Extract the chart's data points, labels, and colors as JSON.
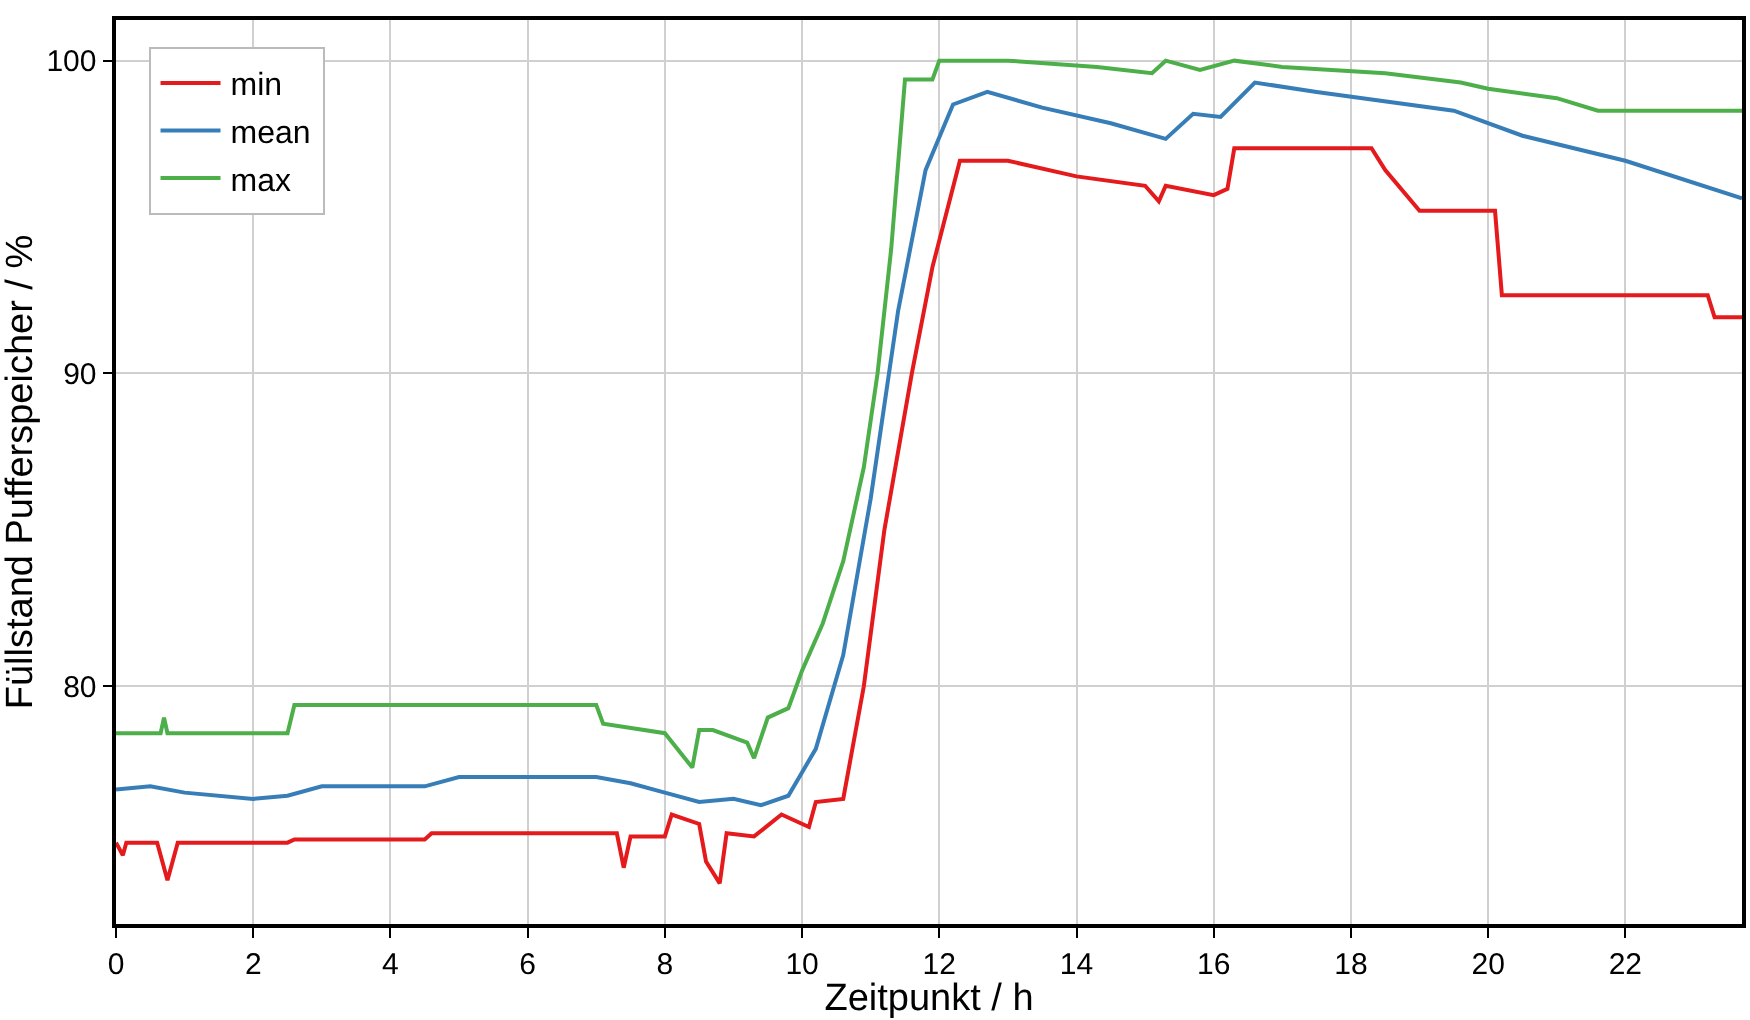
{
  "chart_data": {
    "type": "line",
    "xlabel": "Zeitpunkt / h",
    "ylabel": "Füllstand Pufferspeicher / %",
    "xlim": [
      0,
      23.7
    ],
    "ylim": [
      72.4,
      101.3
    ],
    "xticks": [
      0,
      2,
      4,
      6,
      8,
      10,
      12,
      14,
      16,
      18,
      20,
      22
    ],
    "yticks": [
      80,
      90,
      100
    ],
    "grid": true,
    "legend": "top left",
    "line_style": "solid",
    "marker": "none",
    "series": [
      {
        "name": "min",
        "color": "#e41a1c",
        "x": [
          0,
          0.1,
          0.15,
          0.2,
          0.6,
          0.75,
          0.9,
          2.5,
          2.6,
          4.5,
          4.6,
          7.3,
          7.4,
          7.5,
          8,
          8.1,
          8.5,
          8.6,
          8.8,
          8.9,
          9.3,
          9.7,
          10.1,
          10.2,
          10.6,
          10.9,
          11.2,
          11.6,
          11.9,
          12.3,
          13,
          14,
          15,
          15.2,
          15.3,
          16,
          16.2,
          16.3,
          18.3,
          18.5,
          19,
          20.1,
          20.2,
          23.2,
          23.3,
          23.7
        ],
        "values": [
          75,
          74.6,
          75,
          75,
          75,
          73.8,
          75,
          75,
          75.1,
          75.1,
          75.3,
          75.3,
          74.2,
          75.2,
          75.2,
          75.9,
          75.6,
          74.4,
          73.7,
          75.3,
          75.2,
          75.9,
          75.5,
          76.3,
          76.4,
          80,
          85,
          90,
          93.4,
          96.8,
          96.8,
          96.3,
          96,
          95.5,
          96,
          95.7,
          95.9,
          97.2,
          97.2,
          96.5,
          95.2,
          95.2,
          92.5,
          92.5,
          91.8,
          91.8
        ]
      },
      {
        "name": "mean",
        "color": "#377eb8",
        "x": [
          0,
          0.5,
          1,
          2,
          2.5,
          3,
          4.5,
          5,
          7,
          7.5,
          8,
          8.5,
          9,
          9.4,
          9.8,
          10.2,
          10.6,
          11,
          11.4,
          11.8,
          12.2,
          12.7,
          13.5,
          14.5,
          15.3,
          15.7,
          16.1,
          16.6,
          17.5,
          19.5,
          20.5,
          22,
          23.7
        ],
        "values": [
          76.7,
          76.8,
          76.6,
          76.4,
          76.5,
          76.8,
          76.8,
          77.1,
          77.1,
          76.9,
          76.6,
          76.3,
          76.4,
          76.2,
          76.5,
          78,
          81,
          86,
          92,
          96.5,
          98.6,
          99,
          98.5,
          98,
          97.5,
          98.3,
          98.2,
          99.3,
          99,
          98.4,
          97.6,
          96.8,
          95.6
        ]
      },
      {
        "name": "max",
        "color": "#4daf4a",
        "x": [
          0,
          0.65,
          0.7,
          0.75,
          2.5,
          2.6,
          7,
          7.1,
          8,
          8.4,
          8.5,
          8.7,
          9.2,
          9.3,
          9.5,
          9.8,
          10,
          10.3,
          10.6,
          10.9,
          11.1,
          11.3,
          11.5,
          11.9,
          12,
          13,
          14.3,
          15.1,
          15.3,
          15.8,
          16.3,
          17,
          18.5,
          19.6,
          20,
          21,
          21.6,
          23.7
        ],
        "values": [
          78.5,
          78.5,
          79,
          78.5,
          78.5,
          79.4,
          79.4,
          78.8,
          78.5,
          77.4,
          78.6,
          78.6,
          78.2,
          77.7,
          79,
          79.3,
          80.5,
          82,
          84,
          87,
          90,
          94,
          99.4,
          99.4,
          100,
          100,
          99.8,
          99.6,
          100,
          99.7,
          100,
          99.8,
          99.6,
          99.3,
          99.1,
          98.8,
          98.4,
          98.4
        ]
      }
    ]
  }
}
